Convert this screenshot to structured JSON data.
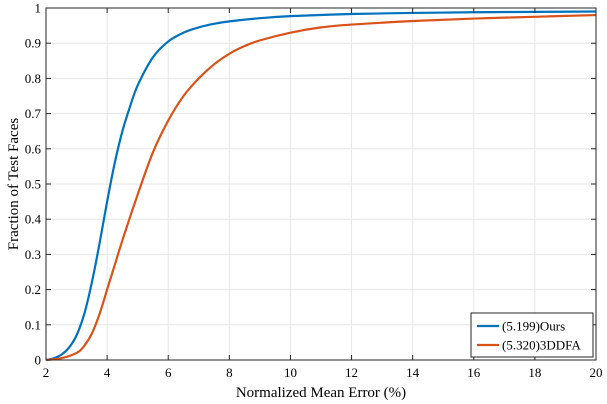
{
  "chart_data": {
    "type": "line",
    "title": "",
    "xlabel": "Normalized Mean Error (%)",
    "ylabel": "Fraction of Test Faces",
    "xlim": [
      2,
      20
    ],
    "ylim": [
      0,
      1
    ],
    "xticks": [
      2,
      4,
      6,
      8,
      10,
      12,
      14,
      16,
      18,
      20
    ],
    "yticks": [
      0,
      0.1,
      0.2,
      0.3,
      0.4,
      0.5,
      0.6,
      0.7,
      0.8,
      0.9,
      1
    ],
    "xtick_labels": [
      "2",
      "4",
      "6",
      "8",
      "10",
      "12",
      "14",
      "16",
      "18",
      "20"
    ],
    "ytick_labels": [
      "0",
      "0.1",
      "0.2",
      "0.3",
      "0.4",
      "0.5",
      "0.6",
      "0.7",
      "0.8",
      "0.9",
      "1"
    ],
    "grid": true,
    "legend_position": "bottom-right",
    "series": [
      {
        "name": "(5.199)Ours",
        "color": "#0072BD",
        "x": [
          2,
          2.25,
          2.5,
          2.75,
          3,
          3.25,
          3.5,
          3.75,
          4,
          4.25,
          4.5,
          4.75,
          5,
          5.5,
          6,
          6.5,
          7,
          7.5,
          8,
          9,
          10,
          12,
          14,
          16,
          18,
          20
        ],
        "y": [
          0.0,
          0.005,
          0.015,
          0.035,
          0.07,
          0.13,
          0.22,
          0.33,
          0.45,
          0.56,
          0.65,
          0.72,
          0.78,
          0.86,
          0.905,
          0.93,
          0.945,
          0.955,
          0.962,
          0.971,
          0.977,
          0.983,
          0.986,
          0.988,
          0.989,
          0.99
        ]
      },
      {
        "name": "(5.320)3DDFA",
        "color": "#D95319",
        "x": [
          2,
          2.5,
          3,
          3.25,
          3.5,
          3.75,
          4,
          4.25,
          4.5,
          5,
          5.5,
          6,
          6.5,
          7,
          7.5,
          8,
          8.5,
          9,
          10,
          11,
          12,
          14,
          16,
          18,
          20
        ],
        "y": [
          0.0,
          0.005,
          0.02,
          0.04,
          0.075,
          0.13,
          0.2,
          0.27,
          0.34,
          0.47,
          0.59,
          0.68,
          0.75,
          0.8,
          0.84,
          0.87,
          0.892,
          0.908,
          0.93,
          0.945,
          0.953,
          0.963,
          0.97,
          0.975,
          0.98
        ]
      }
    ]
  }
}
